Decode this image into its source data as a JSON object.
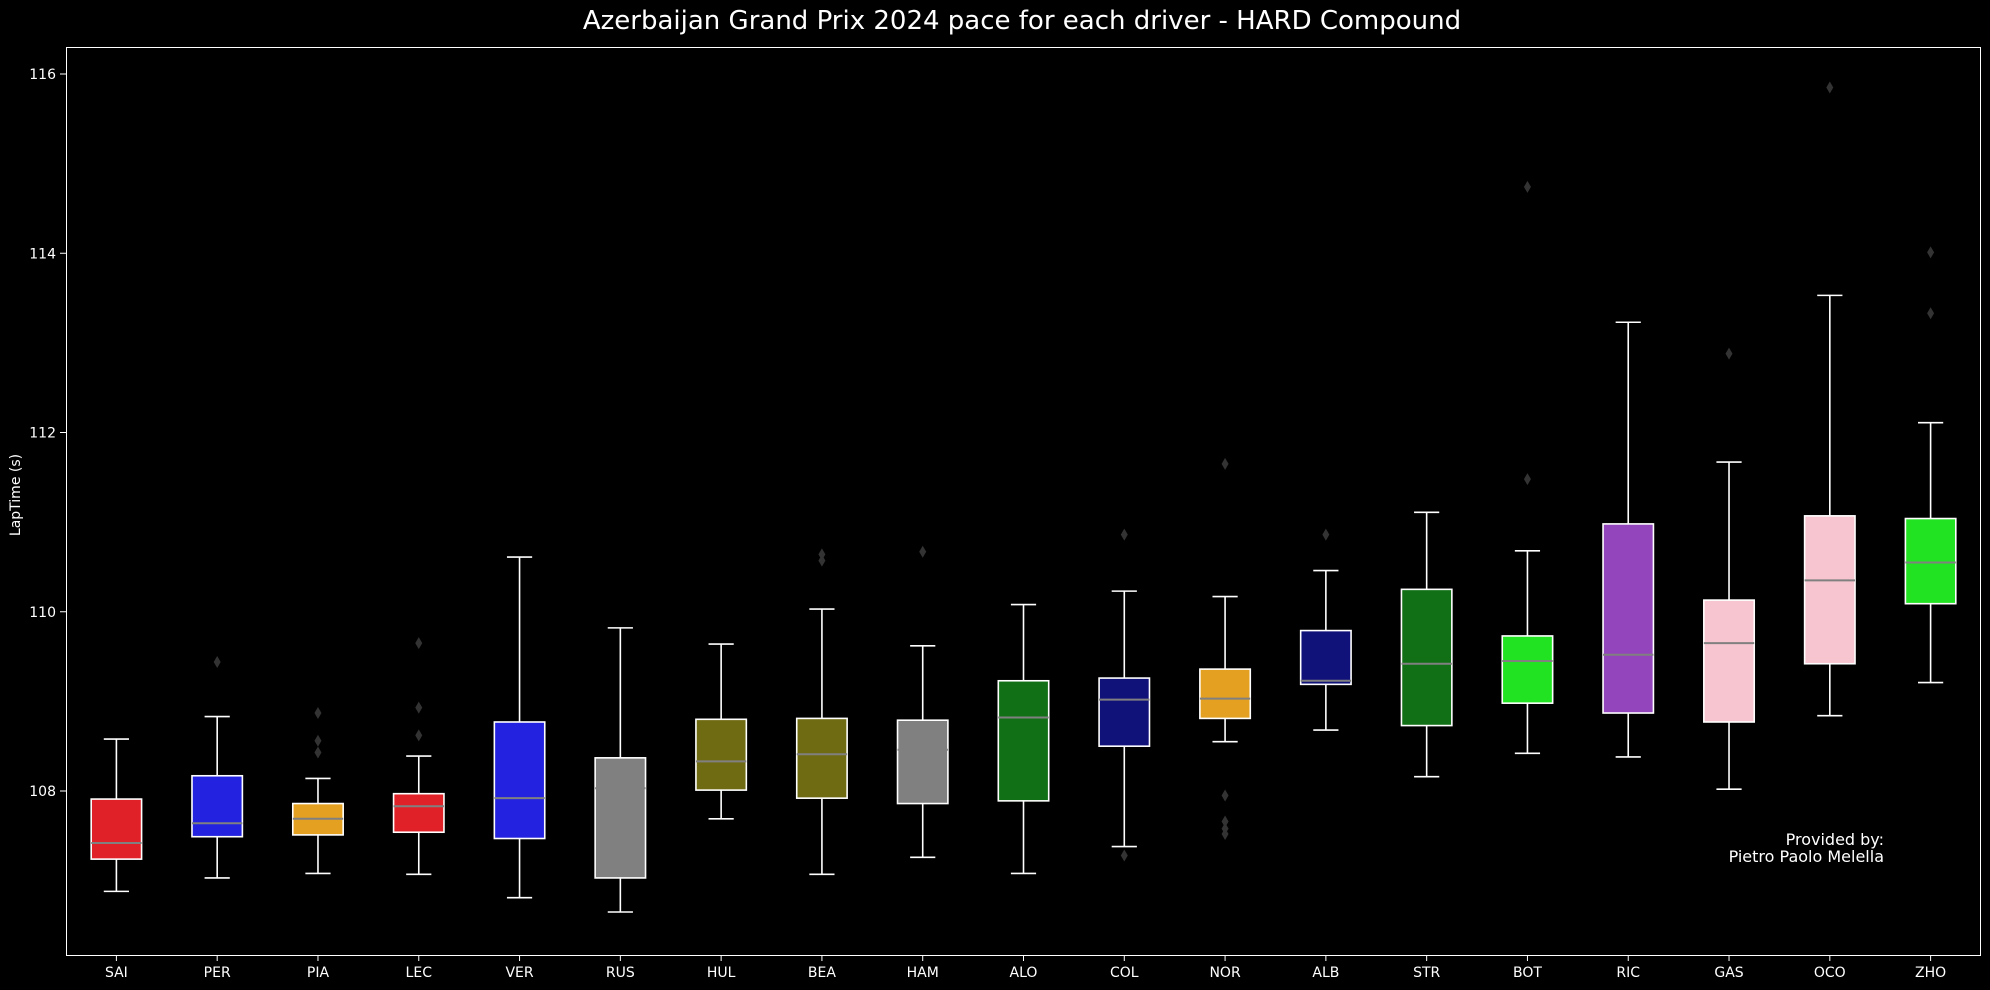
{
  "chart_data": {
    "type": "box",
    "title": "Azerbaijan Grand Prix 2024 pace for each driver - HARD Compound",
    "ylabel": "LapTime (s)",
    "xlabel": "",
    "ylim": [
      106.2,
      116.3
    ],
    "yticks": [
      108,
      110,
      112,
      114,
      116
    ],
    "grid": false,
    "annotation": {
      "line1": "Provided by:",
      "line2": "Pietro Paolo Melella"
    },
    "colors": {
      "background": "#000000",
      "whisker": "#ffffff",
      "median": "#808080",
      "outlier": "#333333",
      "axis": "#ffffff"
    },
    "drivers": [
      {
        "name": "SAI",
        "color": "#e02127",
        "whislo": 106.88,
        "q1": 107.24,
        "med": 107.42,
        "q3": 107.91,
        "whishi": 108.58,
        "outliers": []
      },
      {
        "name": "PER",
        "color": "#2222e0",
        "whislo": 107.03,
        "q1": 107.49,
        "med": 107.64,
        "q3": 108.17,
        "whishi": 108.83,
        "outliers": [
          109.44
        ]
      },
      {
        "name": "PIA",
        "color": "#e3a021",
        "whislo": 107.08,
        "q1": 107.51,
        "med": 107.69,
        "q3": 107.86,
        "whishi": 108.14,
        "outliers": [
          108.43,
          108.56,
          108.87
        ]
      },
      {
        "name": "LEC",
        "color": "#e02127",
        "whislo": 107.07,
        "q1": 107.54,
        "med": 107.83,
        "q3": 107.97,
        "whishi": 108.39,
        "outliers": [
          108.62,
          108.93,
          109.65
        ]
      },
      {
        "name": "VER",
        "color": "#2222e0",
        "whislo": 106.81,
        "q1": 107.47,
        "med": 107.92,
        "q3": 108.77,
        "whishi": 110.61,
        "outliers": []
      },
      {
        "name": "RUS",
        "color": "#808080",
        "whislo": 106.65,
        "q1": 107.03,
        "med": 108.03,
        "q3": 108.37,
        "whishi": 109.82,
        "outliers": []
      },
      {
        "name": "HUL",
        "color": "#6f6b13",
        "whislo": 107.69,
        "q1": 108.01,
        "med": 108.33,
        "q3": 108.8,
        "whishi": 109.64,
        "outliers": []
      },
      {
        "name": "BEA",
        "color": "#6f6b13",
        "whislo": 107.07,
        "q1": 107.92,
        "med": 108.41,
        "q3": 108.81,
        "whishi": 110.03,
        "outliers": [
          110.57,
          110.64
        ]
      },
      {
        "name": "HAM",
        "color": "#808080",
        "whislo": 107.26,
        "q1": 107.86,
        "med": 108.46,
        "q3": 108.79,
        "whishi": 109.62,
        "outliers": [
          110.67
        ]
      },
      {
        "name": "ALO",
        "color": "#117016",
        "whislo": 107.08,
        "q1": 107.89,
        "med": 108.82,
        "q3": 109.23,
        "whishi": 110.08,
        "outliers": []
      },
      {
        "name": "COL",
        "color": "#11117a",
        "whislo": 107.38,
        "q1": 108.5,
        "med": 109.02,
        "q3": 109.26,
        "whishi": 110.23,
        "outliers": [
          107.28,
          110.86
        ]
      },
      {
        "name": "NOR",
        "color": "#e3a021",
        "whislo": 108.55,
        "q1": 108.81,
        "med": 109.03,
        "q3": 109.36,
        "whishi": 110.17,
        "outliers": [
          107.52,
          107.58,
          107.66,
          107.95,
          111.65
        ]
      },
      {
        "name": "ALB",
        "color": "#11117a",
        "whislo": 108.68,
        "q1": 109.19,
        "med": 109.23,
        "q3": 109.79,
        "whishi": 110.46,
        "outliers": [
          110.86
        ]
      },
      {
        "name": "STR",
        "color": "#117016",
        "whislo": 108.16,
        "q1": 108.73,
        "med": 109.42,
        "q3": 110.25,
        "whishi": 111.11,
        "outliers": []
      },
      {
        "name": "BOT",
        "color": "#21e321",
        "whislo": 108.42,
        "q1": 108.98,
        "med": 109.45,
        "q3": 109.73,
        "whishi": 110.68,
        "outliers": [
          111.48,
          114.74
        ]
      },
      {
        "name": "RIC",
        "color": "#9345bb",
        "whislo": 108.38,
        "q1": 108.87,
        "med": 109.52,
        "q3": 110.98,
        "whishi": 113.23,
        "outliers": []
      },
      {
        "name": "GAS",
        "color": "#f7c5cf",
        "whislo": 108.02,
        "q1": 108.77,
        "med": 109.65,
        "q3": 110.13,
        "whishi": 111.67,
        "outliers": [
          112.88
        ]
      },
      {
        "name": "OCO",
        "color": "#f7c5cf",
        "whislo": 108.84,
        "q1": 109.42,
        "med": 110.35,
        "q3": 111.07,
        "whishi": 113.53,
        "outliers": [
          115.85
        ]
      },
      {
        "name": "ZHO",
        "color": "#21e321",
        "whislo": 109.21,
        "q1": 110.09,
        "med": 110.55,
        "q3": 111.04,
        "whishi": 112.11,
        "outliers": [
          113.33,
          114.01
        ]
      }
    ]
  }
}
